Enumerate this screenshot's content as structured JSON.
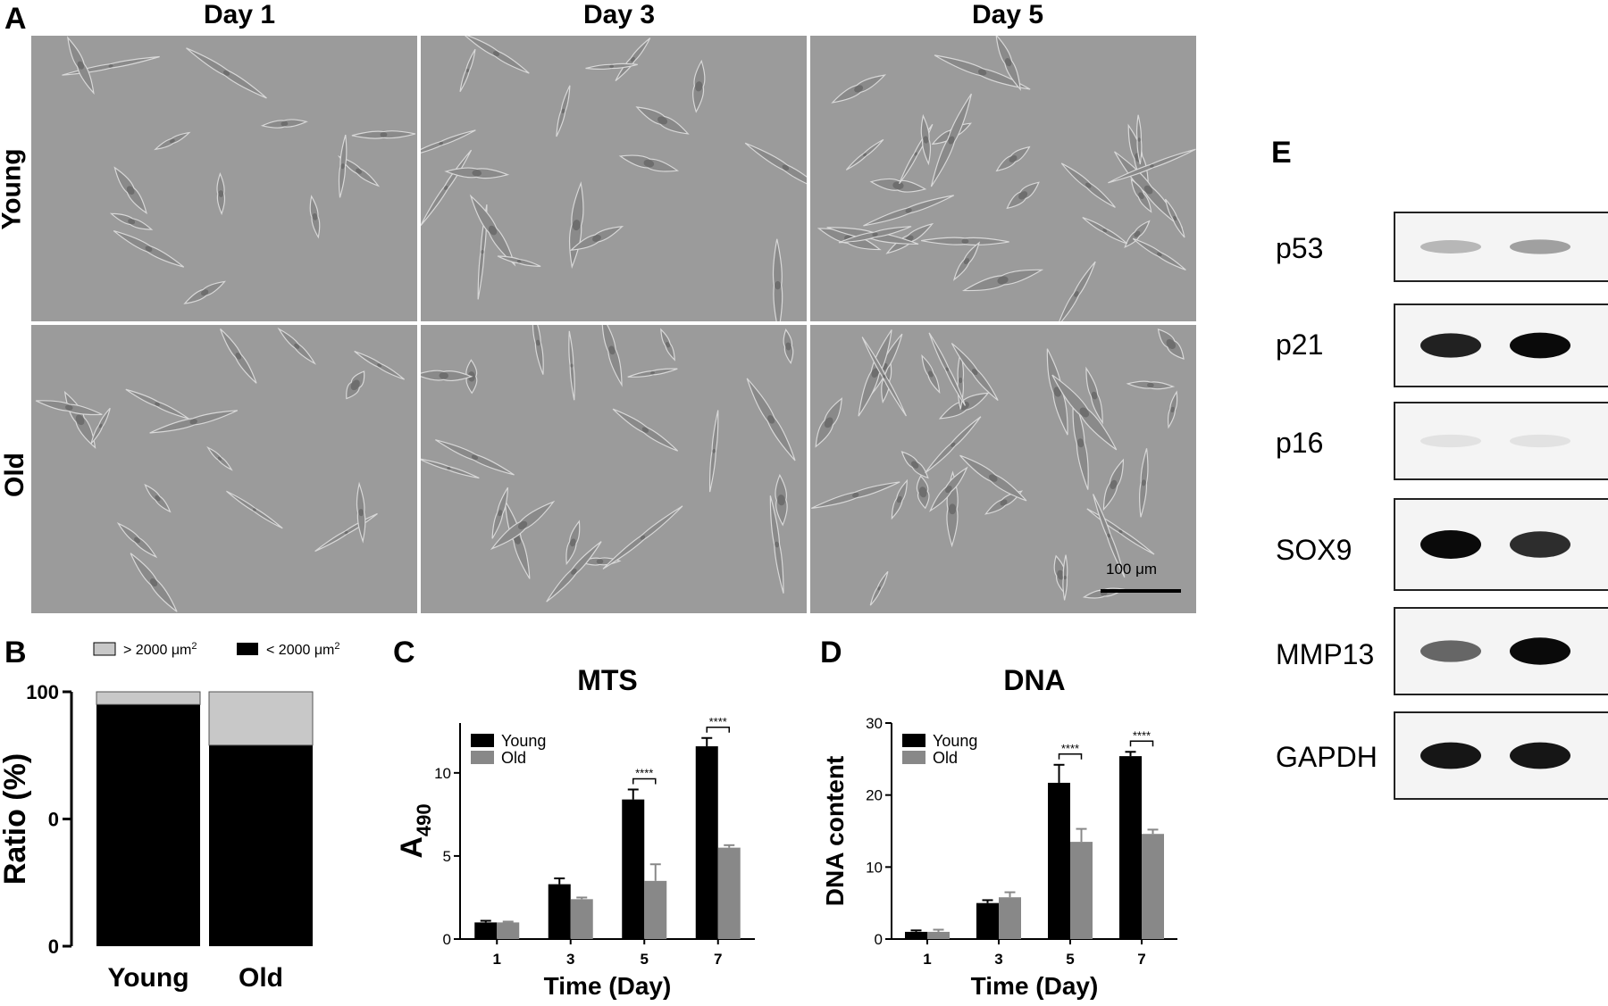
{
  "panel_A": {
    "letter": "A",
    "columns": [
      "Day 1",
      "Day 3",
      "Day 5"
    ],
    "rows": [
      "Young",
      "Old"
    ],
    "scale_bar": "100 μm"
  },
  "panel_B": {
    "letter": "B"
  },
  "panel_C": {
    "letter": "C"
  },
  "panel_D": {
    "letter": "D"
  },
  "panel_E": {
    "letter": "E",
    "bands": [
      "p53",
      "p21",
      "p16",
      "SOX9",
      "MMP13",
      "GAPDH"
    ],
    "band_intensity": {
      "p53": [
        0.25,
        0.35
      ],
      "p21": [
        0.9,
        1.0
      ],
      "p16": [
        0.06,
        0.06
      ],
      "SOX9": [
        1.0,
        0.85
      ],
      "MMP13": [
        0.6,
        1.0
      ],
      "GAPDH": [
        0.95,
        0.95
      ]
    }
  },
  "colors": {
    "young": "#000000",
    "old": "#888888",
    "old_light": "#c8c8c8"
  },
  "chart_data": [
    {
      "panel": "B",
      "type": "bar",
      "stacked": true,
      "categories": [
        "Young",
        "Old"
      ],
      "series": [
        {
          "name": "< 2000 μm²",
          "values": [
            95,
            79
          ]
        },
        {
          "name": "> 2000 μm²",
          "values": [
            5,
            21
          ]
        }
      ],
      "title": "",
      "xlabel": "",
      "ylabel": "Ratio (%)",
      "yticks": [
        "0",
        "0",
        "100"
      ],
      "ylim": [
        0,
        100
      ],
      "legend": "top"
    },
    {
      "panel": "C",
      "type": "bar",
      "title": "MTS",
      "xlabel": "Time (Day)",
      "ylabel": "A490",
      "categories": [
        "1",
        "3",
        "5",
        "7"
      ],
      "series": [
        {
          "name": "Young",
          "values": [
            1.0,
            3.3,
            8.4,
            11.6
          ],
          "errors": [
            0.1,
            0.35,
            0.6,
            0.5
          ]
        },
        {
          "name": "Old",
          "values": [
            1.0,
            2.4,
            3.5,
            5.5
          ],
          "errors": [
            0.05,
            0.1,
            1.0,
            0.15
          ]
        }
      ],
      "ylim": [
        0,
        13
      ],
      "yticks": [
        0,
        5,
        10
      ],
      "significance": [
        {
          "category": "5",
          "label": "****"
        },
        {
          "category": "7",
          "label": "****"
        }
      ],
      "legend": "top-left"
    },
    {
      "panel": "D",
      "type": "bar",
      "title": "DNA",
      "xlabel": "Time (Day)",
      "ylabel": "DNA content",
      "categories": [
        "1",
        "3",
        "5",
        "7"
      ],
      "series": [
        {
          "name": "Young",
          "values": [
            1.0,
            5.0,
            21.7,
            25.4
          ],
          "errors": [
            0.2,
            0.4,
            2.5,
            0.6
          ]
        },
        {
          "name": "Old",
          "values": [
            1.0,
            5.8,
            13.5,
            14.6
          ],
          "errors": [
            0.3,
            0.7,
            1.8,
            0.6
          ]
        }
      ],
      "ylim": [
        0,
        30
      ],
      "yticks": [
        0,
        10,
        20,
        30
      ],
      "significance": [
        {
          "category": "5",
          "label": "****"
        },
        {
          "category": "7",
          "label": "****"
        }
      ],
      "legend": "top-left"
    }
  ]
}
